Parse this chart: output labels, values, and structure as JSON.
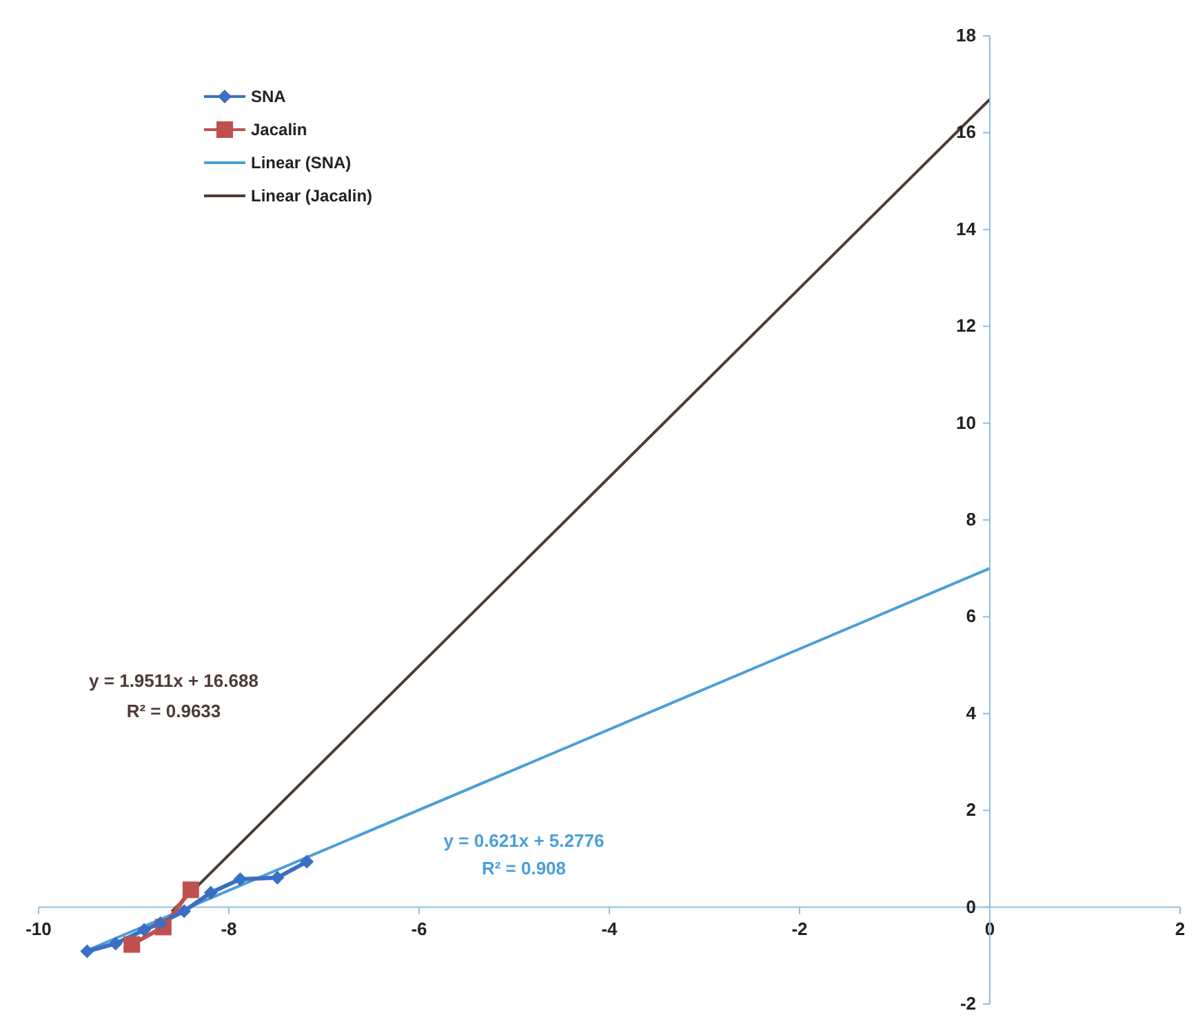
{
  "chart_data": {
    "type": "line",
    "xlim": [
      -10,
      2
    ],
    "xticks": [
      -10,
      -8,
      -6,
      -4,
      -2,
      0,
      2
    ],
    "ylim": [
      -2,
      18
    ],
    "yticks": [
      -2,
      0,
      2,
      4,
      6,
      8,
      10,
      12,
      14,
      16,
      18
    ],
    "grid": false,
    "legend": "top left",
    "series": [
      {
        "name": "SNA",
        "color": "#3a6fc4",
        "marker": "diamond",
        "x": [
          -9.49,
          -9.19,
          -8.89,
          -8.72,
          -8.47,
          -8.19,
          -7.88,
          -7.49,
          -7.18
        ],
        "values": [
          -0.91,
          -0.75,
          -0.47,
          -0.33,
          -0.08,
          0.3,
          0.58,
          0.61,
          0.94
        ]
      },
      {
        "name": "Jacalin",
        "color": "#c0504d",
        "marker": "square",
        "x": [
          -9.02,
          -8.69,
          -8.4
        ],
        "values": [
          -0.77,
          -0.41,
          0.36
        ]
      },
      {
        "name": "Linear (SNA)",
        "color": "#4a9fd8",
        "marker": "none",
        "x": [
          -9.5,
          0
        ],
        "values": [
          -0.9,
          7.0
        ]
      },
      {
        "name": "Linear (Jacalin)",
        "color": "#4d3b36",
        "marker": "none",
        "x": [
          -8.6,
          0
        ],
        "values": [
          -0.09,
          16.69
        ]
      }
    ],
    "annotations": [
      "y = 1.9511x + 16.688",
      "R² = 0.9633",
      "y = 0.621x + 5.2776",
      "R² = 0.908"
    ]
  }
}
